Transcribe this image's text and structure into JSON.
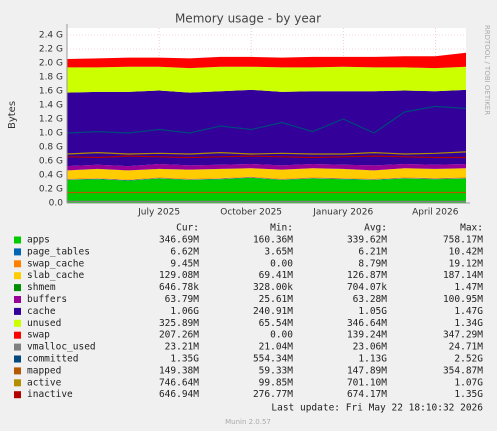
{
  "chart_data": {
    "type": "area",
    "title": "Memory usage - by year",
    "ylabel": "Bytes",
    "side_text": "RRDTOOL / TOBI OETIKER",
    "x": [
      "2025-04",
      "2025-05",
      "2025-06",
      "2025-07",
      "2025-08",
      "2025-09",
      "2025-10",
      "2025-11",
      "2025-12",
      "2026-01",
      "2026-02",
      "2026-03",
      "2026-04",
      "2026-05"
    ],
    "xlim": [
      "2025-04",
      "2026-05"
    ],
    "xticks": [
      {
        "value": "2025-07",
        "label": "July 2025"
      },
      {
        "value": "2025-10",
        "label": "October 2025"
      },
      {
        "value": "2026-01",
        "label": "January 2026"
      },
      {
        "value": "2026-04",
        "label": "April 2026"
      }
    ],
    "ylim": [
      0,
      2.5
    ],
    "yticks": [
      {
        "value": 0,
        "label": "0.0"
      },
      {
        "value": 0.2,
        "label": "0.2 G"
      },
      {
        "value": 0.4,
        "label": "0.4 G"
      },
      {
        "value": 0.6,
        "label": "0.6 G"
      },
      {
        "value": 0.8,
        "label": "0.8 G"
      },
      {
        "value": 1.0,
        "label": "1.0 G"
      },
      {
        "value": 1.2,
        "label": "1.2 G"
      },
      {
        "value": 1.4,
        "label": "1.4 G"
      },
      {
        "value": 1.6,
        "label": "1.6 G"
      },
      {
        "value": 1.8,
        "label": "1.8 G"
      },
      {
        "value": 2.0,
        "label": "2.0 G"
      },
      {
        "value": 2.2,
        "label": "2.2 G"
      },
      {
        "value": 2.4,
        "label": "2.4 G"
      }
    ],
    "grid": true,
    "series": [
      {
        "name": "apps",
        "color": "#00cc00",
        "stack": true,
        "values": [
          0.33,
          0.34,
          0.32,
          0.35,
          0.33,
          0.34,
          0.36,
          0.33,
          0.35,
          0.34,
          0.33,
          0.35,
          0.34,
          0.35
        ]
      },
      {
        "name": "page_tables",
        "color": "#0066b3",
        "stack": true,
        "values": [
          0.006,
          0.006,
          0.006,
          0.006,
          0.006,
          0.006,
          0.006,
          0.006,
          0.006,
          0.006,
          0.006,
          0.006,
          0.006,
          0.006
        ]
      },
      {
        "name": "swap_cache",
        "color": "#ff8000",
        "stack": true,
        "values": [
          0.01,
          0.01,
          0.01,
          0.01,
          0.01,
          0.01,
          0.01,
          0.01,
          0.01,
          0.01,
          0.01,
          0.01,
          0.01,
          0.01
        ]
      },
      {
        "name": "slab_cache",
        "color": "#ffcc00",
        "stack": true,
        "values": [
          0.12,
          0.13,
          0.13,
          0.12,
          0.13,
          0.13,
          0.12,
          0.13,
          0.13,
          0.13,
          0.12,
          0.13,
          0.13,
          0.13
        ]
      },
      {
        "name": "shmem",
        "color": "#008f00",
        "stack": true,
        "values": [
          0.0007,
          0.0007,
          0.0007,
          0.0007,
          0.0007,
          0.0007,
          0.0007,
          0.0007,
          0.0007,
          0.0007,
          0.0007,
          0.0007,
          0.0007,
          0.0007
        ]
      },
      {
        "name": "buffers",
        "color": "#990099",
        "stack": true,
        "values": [
          0.06,
          0.06,
          0.06,
          0.07,
          0.06,
          0.06,
          0.06,
          0.06,
          0.06,
          0.06,
          0.07,
          0.06,
          0.06,
          0.06
        ]
      },
      {
        "name": "cache",
        "color": "#330099",
        "stack": true,
        "values": [
          1.05,
          1.04,
          1.06,
          1.05,
          1.04,
          1.05,
          1.06,
          1.05,
          1.04,
          1.05,
          1.06,
          1.05,
          1.05,
          1.06
        ]
      },
      {
        "name": "unused",
        "color": "#ccff00",
        "stack": true,
        "values": [
          0.36,
          0.35,
          0.36,
          0.34,
          0.35,
          0.35,
          0.33,
          0.35,
          0.34,
          0.35,
          0.34,
          0.33,
          0.33,
          0.33
        ]
      },
      {
        "name": "swap",
        "color": "#ff0000",
        "stack": true,
        "values": [
          0.12,
          0.13,
          0.13,
          0.13,
          0.14,
          0.14,
          0.14,
          0.14,
          0.15,
          0.14,
          0.15,
          0.16,
          0.17,
          0.2
        ]
      },
      {
        "name": "vmalloc_used",
        "color": "#808080",
        "stack": false,
        "values": [
          0.023,
          0.023,
          0.023,
          0.023,
          0.023,
          0.023,
          0.023,
          0.023,
          0.023,
          0.023,
          0.023,
          0.023,
          0.023,
          0.023
        ]
      },
      {
        "name": "committed",
        "color": "#00487d",
        "stack": false,
        "values": [
          1.0,
          1.02,
          1.0,
          1.05,
          1.0,
          1.1,
          1.05,
          1.15,
          1.02,
          1.2,
          1.0,
          1.3,
          1.38,
          1.35
        ]
      },
      {
        "name": "mapped",
        "color": "#b35a00",
        "stack": false,
        "values": [
          0.15,
          0.15,
          0.15,
          0.15,
          0.15,
          0.15,
          0.15,
          0.15,
          0.15,
          0.15,
          0.15,
          0.15,
          0.15,
          0.15
        ]
      },
      {
        "name": "active",
        "color": "#b38f00",
        "stack": false,
        "values": [
          0.7,
          0.72,
          0.7,
          0.71,
          0.7,
          0.72,
          0.7,
          0.71,
          0.7,
          0.7,
          0.72,
          0.7,
          0.71,
          0.73
        ]
      },
      {
        "name": "inactive",
        "color": "#b30000",
        "stack": false,
        "values": [
          0.66,
          0.65,
          0.67,
          0.66,
          0.65,
          0.66,
          0.67,
          0.66,
          0.65,
          0.66,
          0.67,
          0.66,
          0.65,
          0.65
        ]
      }
    ],
    "legend_stats": {
      "headers": [
        "Cur:",
        "Min:",
        "Avg:",
        "Max:"
      ],
      "rows": [
        [
          "346.69M",
          "160.36M",
          "339.62M",
          "758.17M"
        ],
        [
          "6.62M",
          "3.65M",
          "6.21M",
          "10.42M"
        ],
        [
          "9.45M",
          "0.00",
          "8.79M",
          "19.12M"
        ],
        [
          "129.08M",
          "69.41M",
          "126.87M",
          "187.14M"
        ],
        [
          "646.78k",
          "328.00k",
          "704.07k",
          "1.47M"
        ],
        [
          "63.79M",
          "25.61M",
          "63.28M",
          "100.95M"
        ],
        [
          "1.06G",
          "240.91M",
          "1.05G",
          "1.47G"
        ],
        [
          "325.89M",
          "65.54M",
          "346.64M",
          "1.34G"
        ],
        [
          "207.26M",
          "0.00",
          "139.24M",
          "347.29M"
        ],
        [
          "23.21M",
          "21.04M",
          "23.06M",
          "24.71M"
        ],
        [
          "1.35G",
          "554.34M",
          "1.13G",
          "2.52G"
        ],
        [
          "149.38M",
          "59.33M",
          "147.89M",
          "354.87M"
        ],
        [
          "746.64M",
          "99.85M",
          "701.10M",
          "1.07G"
        ],
        [
          "646.94M",
          "276.77M",
          "674.17M",
          "1.35G"
        ]
      ]
    },
    "last_update": "Last update: Fri May 22 18:10:32 2026",
    "footer": "Munin 2.0.57"
  }
}
